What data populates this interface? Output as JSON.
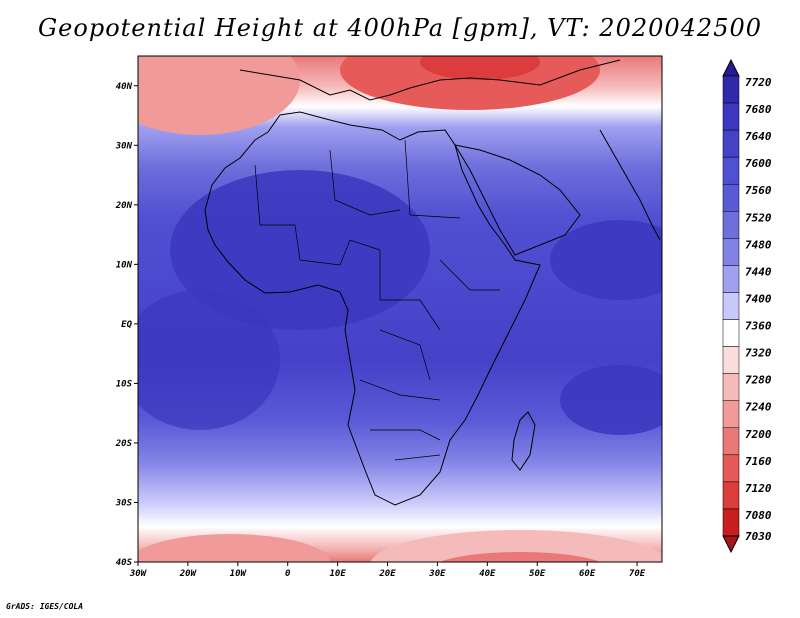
{
  "title": "Geopotential Height at 400hPa [gpm], VT: 2020042500",
  "credit": "GrADS: IGES/COLA",
  "map": {
    "lon_range": [
      -30,
      75
    ],
    "lat_range": [
      -40,
      45
    ],
    "lon_ticks": [
      "30W",
      "20W",
      "10W",
      "0",
      "10E",
      "20E",
      "30E",
      "40E",
      "50E",
      "60E",
      "70E"
    ],
    "lat_ticks": [
      "40S",
      "30S",
      "20S",
      "10S",
      "EQ",
      "10N",
      "20N",
      "30N",
      "40N"
    ]
  },
  "colorbar": {
    "levels": [
      "7720",
      "7680",
      "7640",
      "7600",
      "7560",
      "7520",
      "7480",
      "7440",
      "7400",
      "7360",
      "7320",
      "7280",
      "7240",
      "7200",
      "7160",
      "7120",
      "7080",
      "7030"
    ],
    "colors": [
      "#281a96",
      "#3228aa",
      "#3c37be",
      "#4641c8",
      "#5050d2",
      "#5a5ad7",
      "#6e6edc",
      "#8282e6",
      "#a0a0f0",
      "#c8c8fa",
      "#ffffff",
      "#fadcdc",
      "#f5baba",
      "#f09a9a",
      "#eb7878",
      "#e65a5a",
      "#dc3c3c",
      "#c81e1e",
      "#aa1414"
    ]
  }
}
